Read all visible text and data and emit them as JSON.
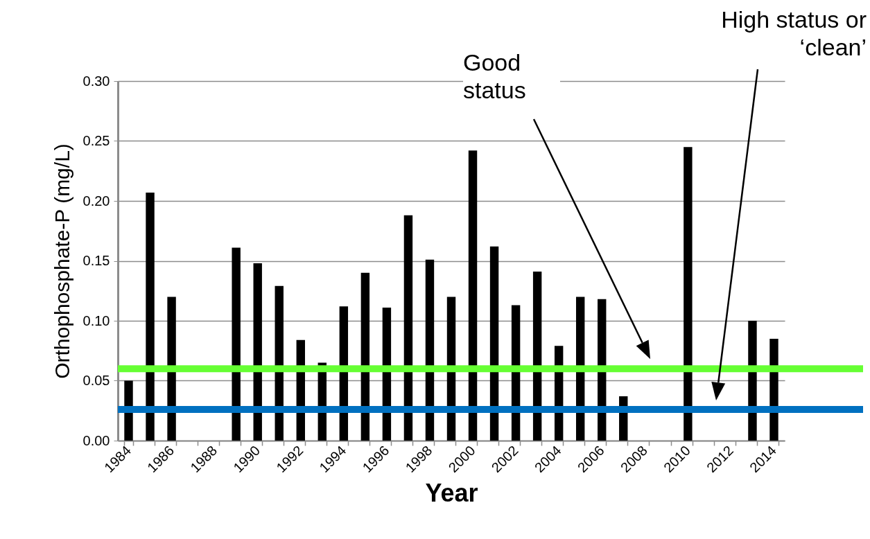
{
  "chart_data": {
    "type": "bar",
    "xlabel": "Year",
    "ylabel": "Orthophosphate-P (mg/L)",
    "categories": [
      "1984",
      null,
      "1986",
      null,
      "1988",
      null,
      "1990",
      null,
      "1992",
      null,
      "1994",
      null,
      "1996",
      null,
      "1998",
      null,
      "2000",
      null,
      "2002",
      null,
      "2004",
      null,
      "2006",
      null,
      "2008",
      null,
      "2010",
      null,
      "2012",
      null,
      "2014"
    ],
    "values": [
      0.05,
      0.207,
      0.12,
      null,
      null,
      0.161,
      0.148,
      0.129,
      0.084,
      0.065,
      0.112,
      0.14,
      0.111,
      0.188,
      0.151,
      0.12,
      0.242,
      0.162,
      0.113,
      0.141,
      0.079,
      0.12,
      0.118,
      0.037,
      null,
      null,
      0.245,
      null,
      null,
      0.1,
      0.085
    ],
    "color": "#000000",
    "ylim": [
      0,
      0.3
    ],
    "yticks": [
      {
        "value": 0,
        "label": "0.00"
      },
      {
        "value": 0.05,
        "label": "0.05"
      },
      {
        "value": 0.1,
        "label": "0.10"
      },
      {
        "value": 0.15,
        "label": "0.15"
      },
      {
        "value": 0.2,
        "label": "0.20"
      },
      {
        "value": 0.25,
        "label": "0.25"
      },
      {
        "value": 0.3,
        "label": "0.30"
      }
    ],
    "grid": "y",
    "ref_lines": [
      {
        "axis": "y",
        "value": 0.06,
        "color": "#66ff33"
      },
      {
        "axis": "y",
        "value": 0.026,
        "color": "#0070c0"
      }
    ],
    "annotations": [
      "Good status",
      "High status or ‘clean’"
    ]
  }
}
